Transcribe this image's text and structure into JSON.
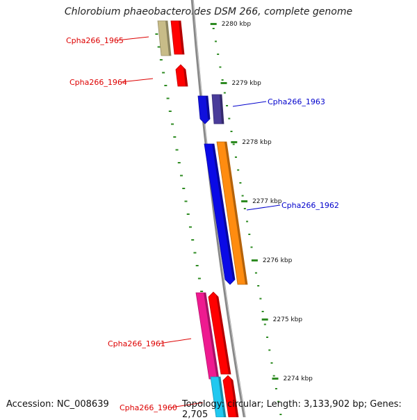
{
  "title": "Chlorobium phaeobacteroides DSM 266, complete genome",
  "accession_text": "Accession: NC_008639",
  "summary_text": "Topology: circular; Length: 3,133,902 bp; Genes: 2,705",
  "colors": {
    "backbone": "#888888",
    "tick": "#2e8b22",
    "left_label": "#dd0000",
    "right_label": "#0000cc"
  },
  "ticks": [
    {
      "label": "2280 kbp"
    },
    {
      "label": "2279 kbp"
    },
    {
      "label": "2278 kbp"
    },
    {
      "label": "2277 kbp"
    },
    {
      "label": "2276 kbp"
    },
    {
      "label": "2275 kbp"
    },
    {
      "label": "2274 kbp"
    }
  ],
  "genes": [
    {
      "name": "Cpha266_1965",
      "color": "#c8bc88"
    },
    {
      "name": "Cpha266_1965b",
      "color": "#ff0000"
    },
    {
      "name": "Cpha266_1964",
      "color": "#ff0000"
    },
    {
      "name": "Cpha266_1963",
      "color": "#1010dd"
    },
    {
      "name": "Cpha266_1963b",
      "color": "#4a3c9a"
    },
    {
      "name": "Cpha266_1962a",
      "color": "#0a0ae6"
    },
    {
      "name": "Cpha266_1962",
      "color": "#ff8c10"
    },
    {
      "name": "Cpha266_1961",
      "color": "#ee1a90"
    },
    {
      "name": "Cpha266_1961b",
      "color": "#ff0000"
    },
    {
      "name": "Cpha266_1960",
      "color": "#20c8f0"
    },
    {
      "name": "Cpha266_1960b",
      "color": "#ff0000"
    }
  ],
  "labels": [
    {
      "text": "Cpha266_1965",
      "side": "left"
    },
    {
      "text": "Cpha266_1964",
      "side": "left"
    },
    {
      "text": "Cpha266_1963",
      "side": "right"
    },
    {
      "text": "Cpha266_1962",
      "side": "right"
    },
    {
      "text": "Cpha266_1961",
      "side": "left"
    },
    {
      "text": "Cpha266_1960",
      "side": "left"
    }
  ]
}
